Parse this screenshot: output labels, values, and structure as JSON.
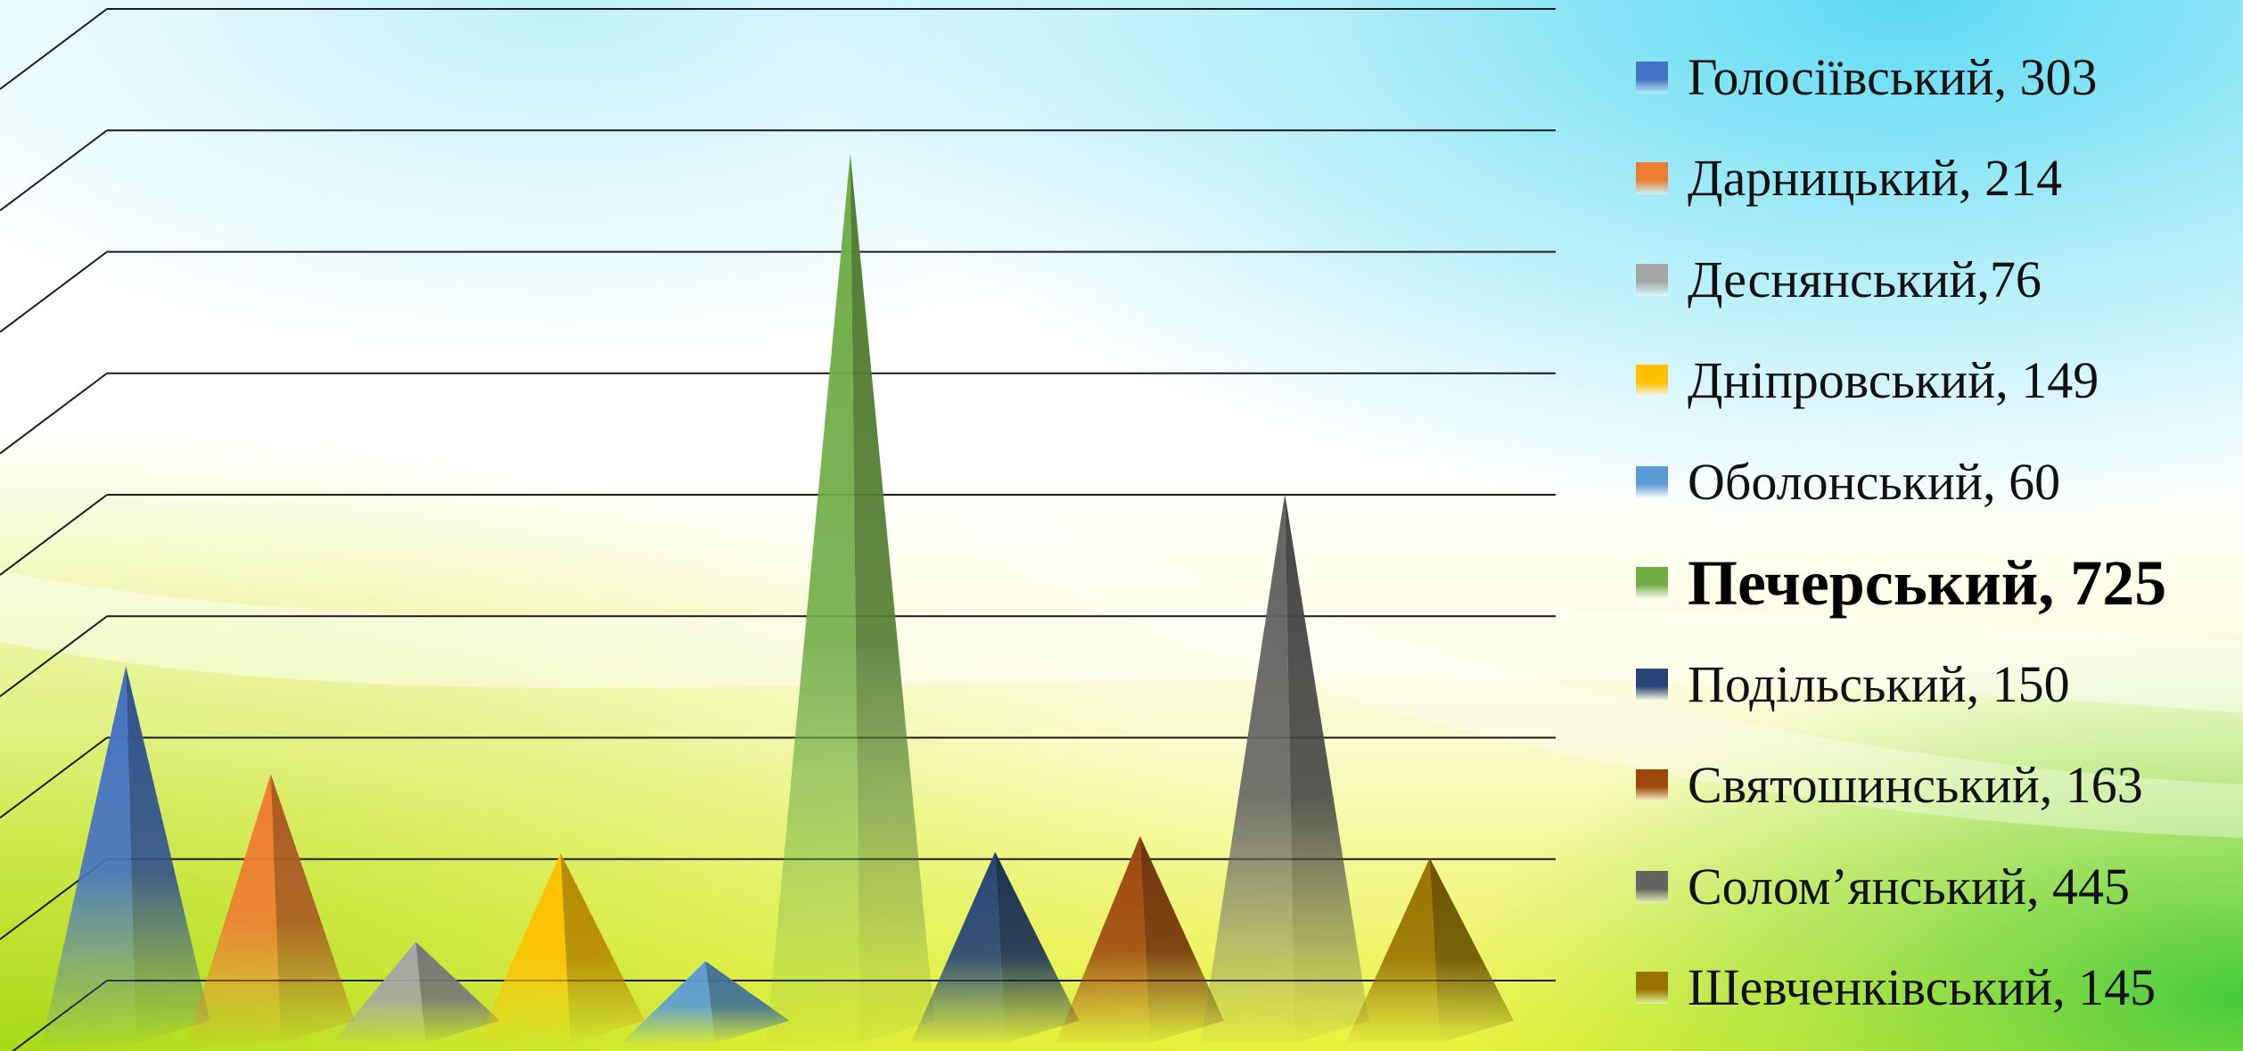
{
  "chart_data": {
    "type": "bar",
    "shape": "pyramid-3d",
    "categories": [
      "Голосіївський",
      "Дарницький",
      "Деснянський",
      "Дніпровський",
      "Оболонський",
      "Печерський",
      "Подільський",
      "Святошинський",
      "Солом’янський",
      "Шевченківський"
    ],
    "values": [
      303,
      214,
      76,
      149,
      60,
      725,
      150,
      163,
      445,
      145
    ],
    "colors": [
      "#4472c4",
      "#ed7d31",
      "#a5a5a5",
      "#ffc000",
      "#5b9bd5",
      "#70ad47",
      "#264478",
      "#9e480e",
      "#636363",
      "#997300"
    ],
    "ylim": [
      0,
      800
    ],
    "grid": true,
    "legend_position": "right"
  },
  "legend": {
    "items": [
      {
        "label": "Голосіївський, 303",
        "color": "#4472c4",
        "bold": false
      },
      {
        "label": "Дарницький, 214",
        "color": "#ed7d31",
        "bold": false
      },
      {
        "label": "Деснянський,76",
        "color": "#a5a5a5",
        "bold": false
      },
      {
        "label": "Дніпровський, 149",
        "color": "#ffc000",
        "bold": false
      },
      {
        "label": "Оболонський, 60",
        "color": "#5b9bd5",
        "bold": false
      },
      {
        "label": "Печерський, 725",
        "color": "#70ad47",
        "bold": true
      },
      {
        "label": "Подільський, 150",
        "color": "#264478",
        "bold": false
      },
      {
        "label": "Святошинський, 163",
        "color": "#9e480e",
        "bold": false
      },
      {
        "label": "Солом’янський, 445",
        "color": "#636363",
        "bold": false
      },
      {
        "label": "Шевченківський, 145",
        "color": "#997300",
        "bold": false
      }
    ]
  }
}
